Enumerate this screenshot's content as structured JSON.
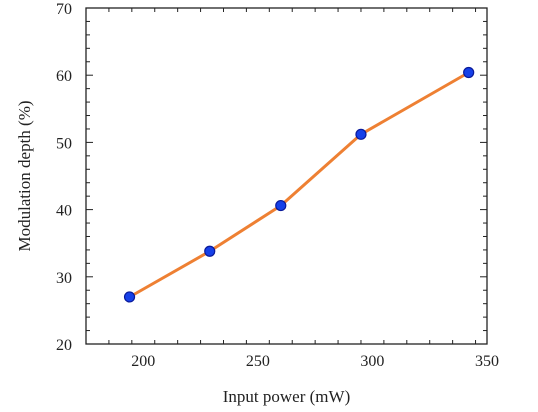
{
  "chart_data": {
    "type": "line",
    "title": "",
    "xlabel": "Input power (mW)",
    "ylabel": "Modulation depth (%)",
    "xlim": [
      175,
      350
    ],
    "ylim": [
      20,
      70
    ],
    "xticks": [
      200,
      250,
      300,
      350
    ],
    "yticks": [
      20,
      30,
      40,
      50,
      60,
      70
    ],
    "grid": false,
    "legend": "none",
    "series": [
      {
        "x": [
          194,
          229,
          260,
          295,
          342
        ],
        "y": [
          27.0,
          33.8,
          40.6,
          51.2,
          60.4
        ],
        "line_color": "#ee8033",
        "marker_fill": "#1640e8",
        "marker_edge": "#0a1a9a"
      }
    ]
  }
}
